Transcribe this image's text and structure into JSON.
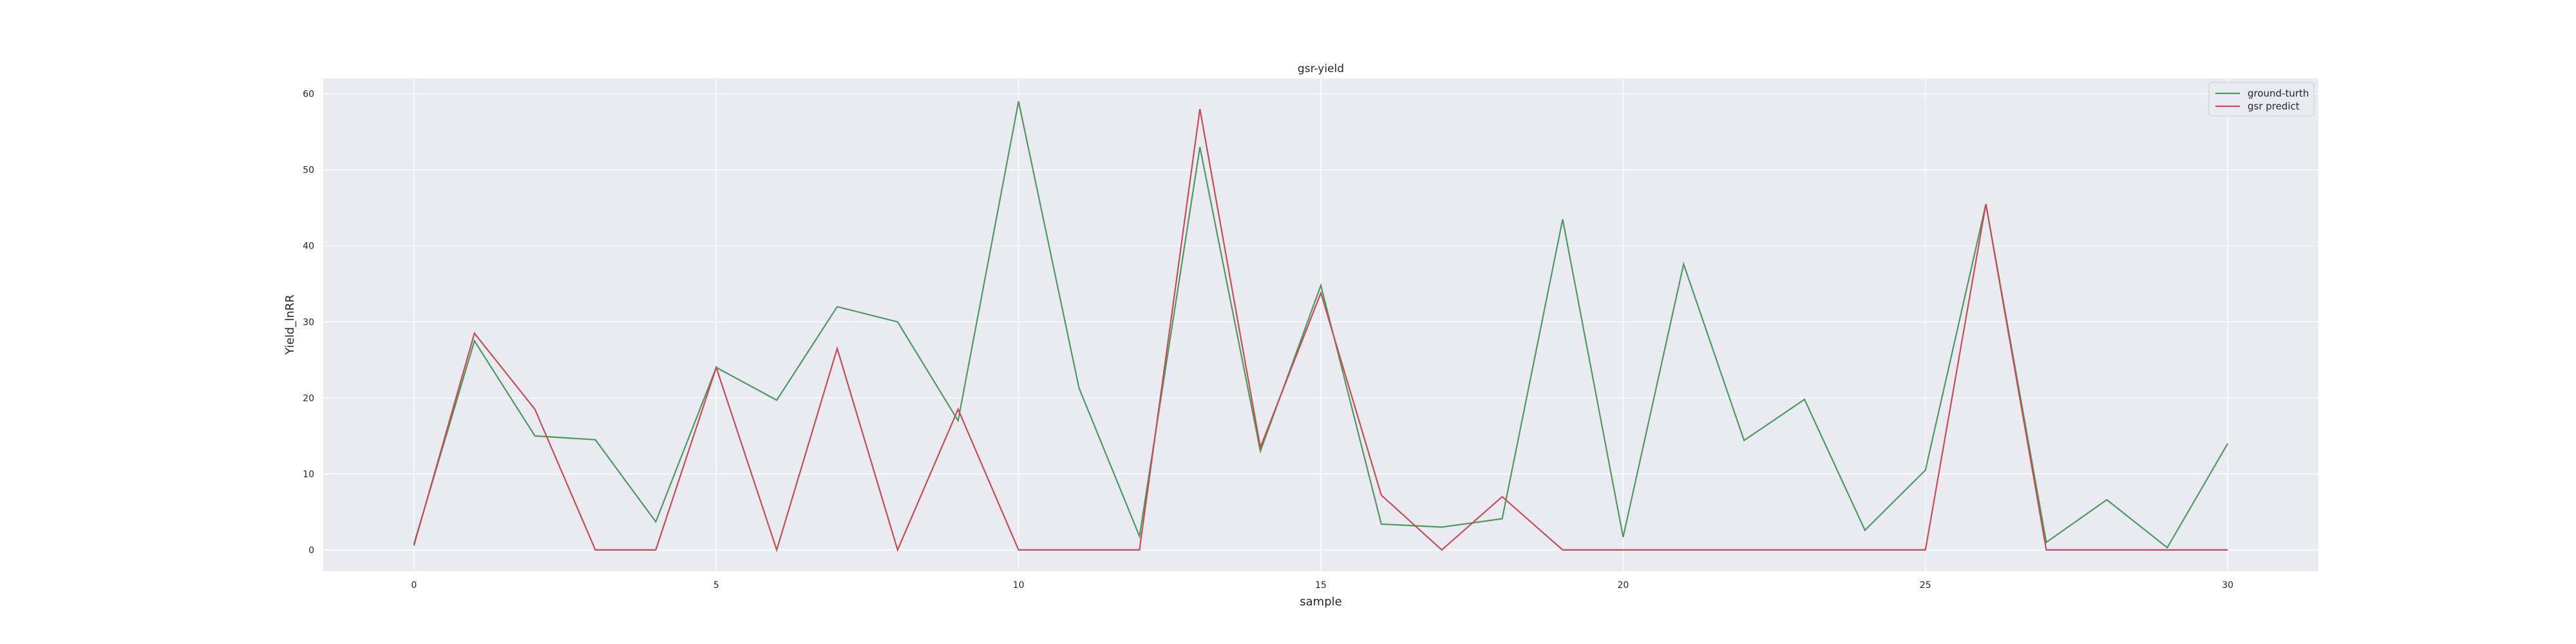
{
  "chart_data": {
    "type": "line",
    "title": "gsr-yield",
    "xlabel": "sample",
    "ylabel": "Yield_lnRR",
    "xlim": [
      -1.5,
      31.5
    ],
    "ylim": [
      -2.8,
      62.0
    ],
    "xticks": [
      0,
      5,
      10,
      15,
      20,
      25,
      30
    ],
    "yticks": [
      0,
      10,
      20,
      30,
      40,
      50,
      60
    ],
    "grid": true,
    "legend_position": "top-right",
    "x": [
      0,
      1,
      2,
      3,
      4,
      5,
      6,
      7,
      8,
      9,
      10,
      11,
      12,
      13,
      14,
      15,
      16,
      17,
      18,
      19,
      20,
      21,
      22,
      23,
      24,
      25,
      26,
      27,
      28,
      29,
      30
    ],
    "series": [
      {
        "name": "ground-turth",
        "color": "#4c9a5e",
        "values": [
          0.8,
          27.5,
          15.0,
          14.5,
          3.7,
          24.0,
          19.7,
          32.0,
          30.0,
          17.0,
          59.0,
          21.3,
          1.8,
          53.0,
          13.0,
          34.8,
          3.4,
          3.0,
          4.1,
          43.5,
          1.7,
          37.6,
          14.4,
          19.8,
          2.6,
          10.5,
          45.5,
          1.0,
          6.6,
          0.3,
          14.0
        ]
      },
      {
        "name": "gsr predict",
        "color": "#c44e52",
        "values": [
          0.6,
          28.5,
          18.5,
          0,
          0,
          24.0,
          0,
          26.5,
          0,
          18.5,
          0,
          0,
          0,
          58.0,
          13.5,
          33.8,
          7.2,
          0,
          7.0,
          0,
          0,
          0,
          0,
          0,
          0,
          0,
          45.5,
          0,
          0,
          0,
          0
        ]
      }
    ]
  }
}
